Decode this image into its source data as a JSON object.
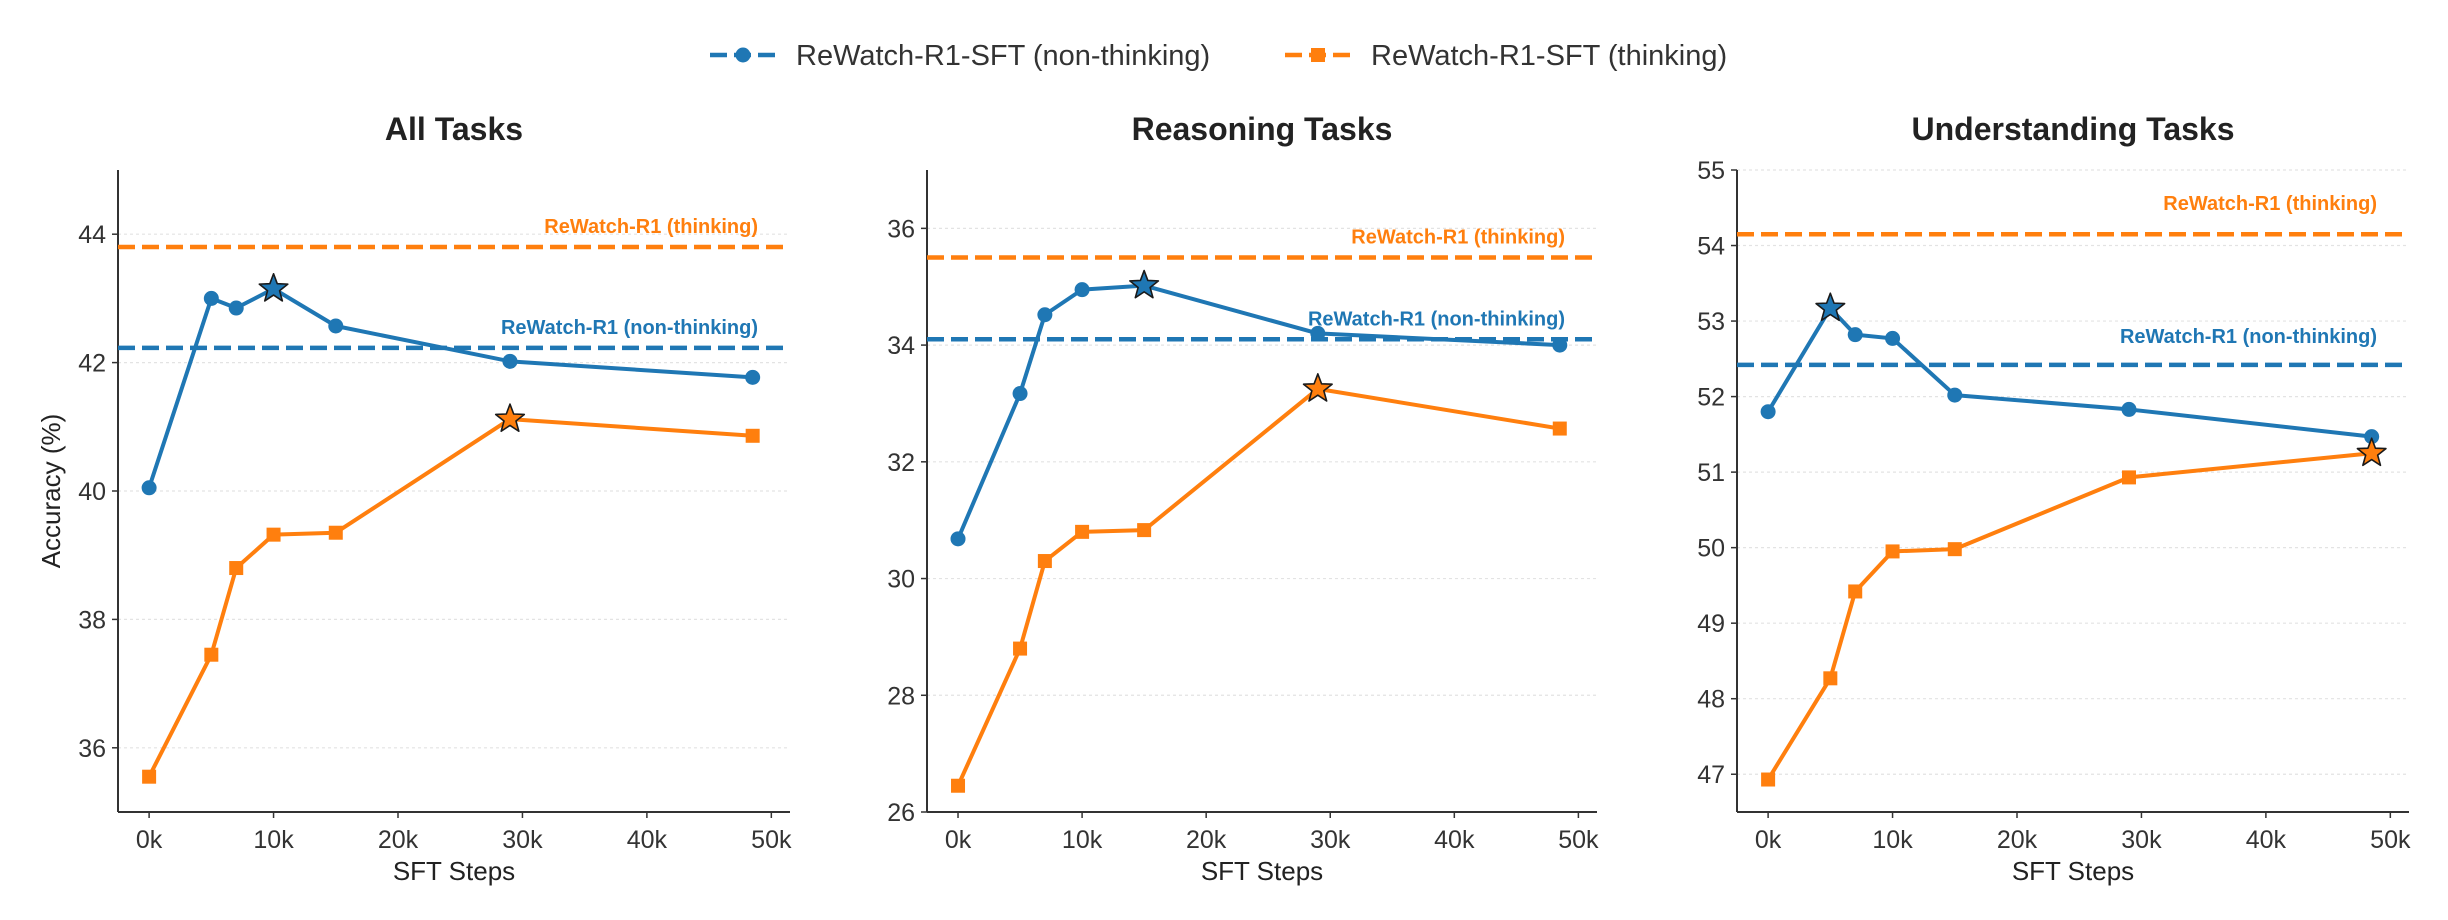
{
  "legend": {
    "items": [
      {
        "label": "ReWatch-R1-SFT (non-thinking)",
        "color": "#1f77b4",
        "marker": "circle"
      },
      {
        "label": "ReWatch-R1-SFT (thinking)",
        "color": "#ff7f0e",
        "marker": "square"
      }
    ]
  },
  "colors": {
    "non_thinking": "#1f77b4",
    "thinking": "#ff7f0e",
    "grid": "#e3e3e3",
    "axis": "#333333"
  },
  "chart_data": [
    {
      "type": "line",
      "title": "All Tasks",
      "xlabel": "SFT Steps",
      "ylabel": "Accuracy (%)",
      "xlim": [
        -2500,
        51500
      ],
      "ylim": [
        35,
        45
      ],
      "xticks": [
        0,
        10000,
        20000,
        30000,
        40000,
        50000
      ],
      "xtick_labels": [
        "0k",
        "10k",
        "20k",
        "30k",
        "40k",
        "50k"
      ],
      "yticks": [
        36,
        38,
        40,
        42,
        44
      ],
      "ytick_labels": [
        "36",
        "38",
        "40",
        "42",
        "44"
      ],
      "grid": "horizontal",
      "series": [
        {
          "name": "ReWatch-R1-SFT (non-thinking)",
          "marker": "circle",
          "x": [
            0,
            5000,
            7000,
            10000,
            15000,
            29000,
            48500
          ],
          "y": [
            40.05,
            43.0,
            42.85,
            43.15,
            42.57,
            42.02,
            41.77
          ],
          "best_index": 3
        },
        {
          "name": "ReWatch-R1-SFT (thinking)",
          "marker": "square",
          "x": [
            0,
            5000,
            7000,
            10000,
            15000,
            29000,
            48500
          ],
          "y": [
            35.55,
            37.45,
            38.8,
            39.32,
            39.35,
            41.12,
            40.86
          ],
          "best_index": 5
        }
      ],
      "reference_lines": [
        {
          "label": "ReWatch-R1 (thinking)",
          "value": 43.8,
          "series": "thinking"
        },
        {
          "label": "ReWatch-R1 (non-thinking)",
          "value": 42.23,
          "series": "non_thinking"
        }
      ]
    },
    {
      "type": "line",
      "title": "Reasoning Tasks",
      "xlabel": "SFT Steps",
      "ylabel": "",
      "xlim": [
        -2500,
        51500
      ],
      "ylim": [
        26,
        37
      ],
      "xticks": [
        0,
        10000,
        20000,
        30000,
        40000,
        50000
      ],
      "xtick_labels": [
        "0k",
        "10k",
        "20k",
        "30k",
        "40k",
        "50k"
      ],
      "yticks": [
        26,
        28,
        30,
        32,
        34,
        36
      ],
      "ytick_labels": [
        "26",
        "28",
        "30",
        "32",
        "34",
        "36"
      ],
      "grid": "horizontal",
      "series": [
        {
          "name": "ReWatch-R1-SFT (non-thinking)",
          "marker": "circle",
          "x": [
            0,
            5000,
            7000,
            10000,
            15000,
            29000,
            48500
          ],
          "y": [
            30.68,
            33.17,
            34.52,
            34.95,
            35.02,
            34.2,
            34.0
          ],
          "best_index": 4
        },
        {
          "name": "ReWatch-R1-SFT (thinking)",
          "marker": "square",
          "x": [
            0,
            5000,
            7000,
            10000,
            15000,
            29000,
            48500
          ],
          "y": [
            26.45,
            28.8,
            30.3,
            30.8,
            30.83,
            33.25,
            32.57
          ],
          "best_index": 5
        }
      ],
      "reference_lines": [
        {
          "label": "ReWatch-R1 (thinking)",
          "value": 35.5,
          "series": "thinking"
        },
        {
          "label": "ReWatch-R1 (non-thinking)",
          "value": 34.1,
          "series": "non_thinking"
        }
      ]
    },
    {
      "type": "line",
      "title": "Understanding Tasks",
      "xlabel": "SFT Steps",
      "ylabel": "",
      "xlim": [
        -2500,
        51500
      ],
      "ylim": [
        46.5,
        55.0
      ],
      "xticks": [
        0,
        10000,
        20000,
        30000,
        40000,
        50000
      ],
      "xtick_labels": [
        "0k",
        "10k",
        "20k",
        "30k",
        "40k",
        "50k"
      ],
      "yticks": [
        47,
        48,
        49,
        50,
        51,
        52,
        53,
        54,
        55
      ],
      "ytick_labels": [
        "47",
        "48",
        "49",
        "50",
        "51",
        "52",
        "53",
        "54",
        "55"
      ],
      "grid": "horizontal",
      "series": [
        {
          "name": "ReWatch-R1-SFT (non-thinking)",
          "marker": "circle",
          "x": [
            0,
            5000,
            7000,
            10000,
            15000,
            29000,
            48500
          ],
          "y": [
            51.8,
            53.17,
            52.82,
            52.77,
            52.02,
            51.83,
            51.47
          ],
          "best_index": 1
        },
        {
          "name": "ReWatch-R1-SFT (thinking)",
          "marker": "square",
          "x": [
            0,
            5000,
            7000,
            10000,
            15000,
            29000,
            48500
          ],
          "y": [
            46.93,
            48.27,
            49.42,
            49.95,
            49.98,
            50.93,
            51.25
          ],
          "best_index": 6
        }
      ],
      "reference_lines": [
        {
          "label": "ReWatch-R1 (thinking)",
          "value": 54.15,
          "series": "thinking"
        },
        {
          "label": "ReWatch-R1 (non-thinking)",
          "value": 52.42,
          "series": "non_thinking"
        }
      ]
    }
  ]
}
